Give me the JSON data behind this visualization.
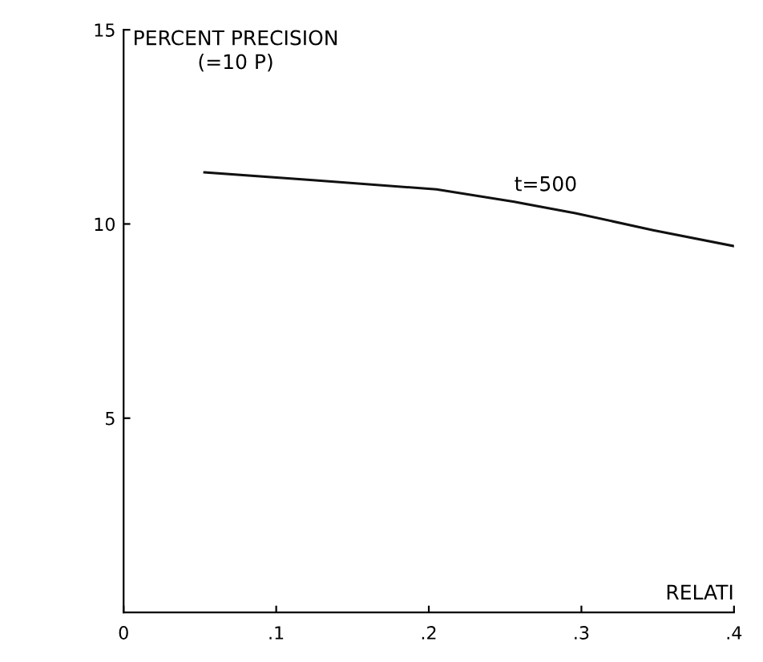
{
  "chart_data": {
    "type": "line",
    "xlabel": "RELATI",
    "ylabel": "PERCENT PRECISION\n(=10 P)",
    "x": [
      0.053,
      0.124,
      0.205,
      0.256,
      0.296,
      0.347,
      0.4
    ],
    "series": [
      {
        "color": "#111111",
        "values": [
          11.33,
          11.13,
          10.89,
          10.57,
          10.28,
          9.84,
          9.43
        ]
      }
    ],
    "xlim": [
      0,
      0.4
    ],
    "ylim": [
      0,
      15
    ],
    "xticks": [
      0,
      {
        "value": 0.1,
        "label": ".1"
      },
      {
        "value": 0.2,
        "label": ".2"
      },
      {
        "value": 0.3,
        "label": ".3"
      },
      {
        "value": 0.4,
        "label": ".4"
      }
    ],
    "yticks": [
      5,
      10,
      15
    ],
    "annotations": [
      {
        "text": "t=500",
        "x": 0.256,
        "y": 10.57
      }
    ],
    "grid": false,
    "legend": false,
    "marker": "none",
    "line_style": "solid"
  }
}
